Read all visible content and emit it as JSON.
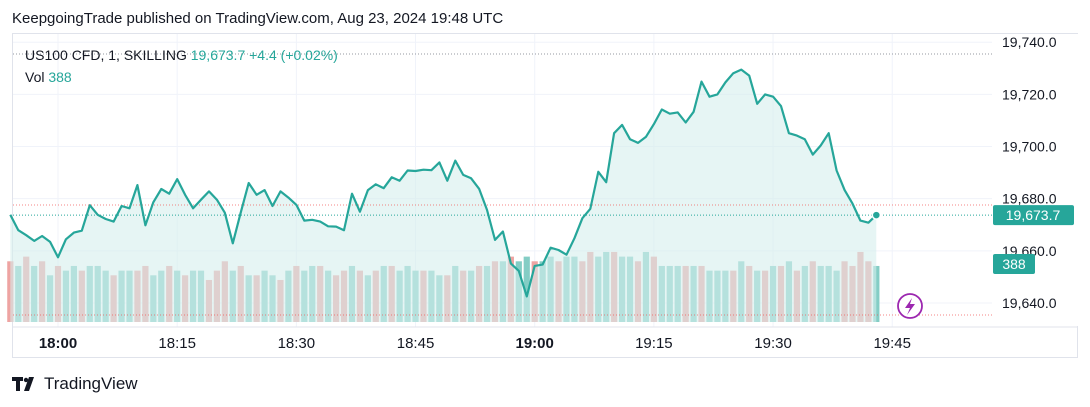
{
  "attribution": "KeepgoingTrade published on TradingView.com, Aug 23, 2024 19:48 UTC",
  "legend": {
    "symbol": "US100 CFD, 1, SKILLING",
    "price": "19,673.7",
    "change": "+4.4 (+0.02%)",
    "vol_label": "Vol",
    "vol_value": "388"
  },
  "brand": "TradingView",
  "colors": {
    "line": "#26a69a",
    "area": "#d6efec",
    "vol_up": "#84cdc5",
    "vol_down": "#eea4a2",
    "accent": "#9c27b0"
  },
  "chart_data": {
    "type": "line",
    "ylim": [
      19635,
      19742
    ],
    "yticks": [
      19640,
      19660,
      19680,
      19700,
      19720,
      19740
    ],
    "ytick_labels": [
      "19,640.0",
      "19,660.0",
      "19,680.0",
      "19,700.0",
      "19,720.0",
      "19,740.0"
    ],
    "x_ticks": [
      {
        "label": "18:00",
        "index": 0,
        "bold": true
      },
      {
        "label": "18:15",
        "index": 15,
        "bold": false
      },
      {
        "label": "18:30",
        "index": 30,
        "bold": false
      },
      {
        "label": "18:45",
        "index": 45,
        "bold": false
      },
      {
        "label": "19:00",
        "index": 60,
        "bold": true
      },
      {
        "label": "19:15",
        "index": 75,
        "bold": false
      },
      {
        "label": "19:30",
        "index": 90,
        "bold": false
      },
      {
        "label": "19:45",
        "index": 105,
        "bold": false
      }
    ],
    "start_index": -6,
    "series": [
      {
        "values": [
          19673.8,
          19667.9,
          19666.0,
          19663.8,
          19665.7,
          19663.4,
          19657.5,
          19664.4,
          19667.0,
          19667.7,
          19677.5,
          19673.8,
          19672.2,
          19671.2,
          19677.2,
          19676.3,
          19685.2,
          19669.8,
          19678.6,
          19683.7,
          19681.9,
          19687.5,
          19681.5,
          19676.3,
          19679.6,
          19682.8,
          19679.6,
          19674.6,
          19662.9,
          19674.6,
          19686.0,
          19681.5,
          19683.3,
          19677.2,
          19682.8,
          19680.4,
          19677.6,
          19671.6,
          19671.9,
          19671.2,
          19669.4,
          19669.3,
          19667.9,
          19681.9,
          19675.0,
          19683.3,
          19685.5,
          19684.0,
          19688.2,
          19686.9,
          19690.8,
          19690.6,
          19691.1,
          19690.9,
          19693.9,
          19686.9,
          19694.6,
          19689.1,
          19687.8,
          19683.8,
          19675.7,
          19664.2,
          19667.4,
          19655.1,
          19652.3,
          19642.5,
          19654.2,
          19654.7,
          19661.2,
          19660.3,
          19658.5,
          19664.8,
          19672.5,
          19676.1,
          19690.3,
          19686.3,
          19705.1,
          19708.3,
          19702.8,
          19701.4,
          19703.7,
          19708.6,
          19714.2,
          19712.6,
          19713.1,
          19709.2,
          19713.3,
          19724.9,
          19719.1,
          19720.0,
          19724.6,
          19728.1,
          19729.5,
          19727.2,
          19716.4,
          19720.0,
          19719.1,
          19715.5,
          19705.1,
          19704.2,
          19702.8,
          19696.9,
          19700.4,
          19705.1,
          19690.8,
          19683.3,
          19678.1,
          19671.6,
          19670.8,
          19673.7
        ]
      },
      {
        "name": "Vol",
        "values": [
          [
            13,
            0
          ],
          [
            12,
            1
          ],
          [
            14,
            0
          ],
          [
            12,
            1
          ],
          [
            13,
            0
          ],
          [
            10,
            1
          ],
          [
            12,
            0
          ],
          [
            11,
            1
          ],
          [
            12,
            1
          ],
          [
            11,
            0
          ],
          [
            12,
            1
          ],
          [
            12,
            1
          ],
          [
            11,
            1
          ],
          [
            10,
            0
          ],
          [
            11,
            1
          ],
          [
            11,
            1
          ],
          [
            11,
            0
          ],
          [
            12,
            0
          ],
          [
            10,
            1
          ],
          [
            11,
            1
          ],
          [
            12,
            0
          ],
          [
            11,
            1
          ],
          [
            10,
            0
          ],
          [
            11,
            1
          ],
          [
            11,
            1
          ],
          [
            9,
            0
          ],
          [
            11,
            0
          ],
          [
            13,
            0
          ],
          [
            11,
            1
          ],
          [
            12,
            0
          ],
          [
            10,
            1
          ],
          [
            10,
            0
          ],
          [
            11,
            1
          ],
          [
            10,
            1
          ],
          [
            9,
            0
          ],
          [
            11,
            1
          ],
          [
            12,
            0
          ],
          [
            11,
            1
          ],
          [
            12,
            1
          ],
          [
            12,
            0
          ],
          [
            11,
            1
          ],
          [
            10,
            0
          ],
          [
            11,
            0
          ],
          [
            12,
            1
          ],
          [
            11,
            0
          ],
          [
            10,
            1
          ],
          [
            11,
            0
          ],
          [
            12,
            1
          ],
          [
            12,
            0
          ],
          [
            11,
            1
          ],
          [
            12,
            1
          ],
          [
            11,
            1
          ],
          [
            11,
            0
          ],
          [
            11,
            1
          ],
          [
            10,
            1
          ],
          [
            10,
            0
          ],
          [
            12,
            1
          ],
          [
            11,
            0
          ],
          [
            11,
            1
          ],
          [
            12,
            0
          ],
          [
            12,
            1
          ],
          [
            13,
            0
          ],
          [
            13,
            1
          ],
          [
            14,
            0
          ],
          [
            13,
            1
          ],
          [
            14,
            1
          ],
          [
            13,
            0
          ],
          [
            13,
            1
          ],
          [
            14,
            1
          ],
          [
            13,
            0
          ],
          [
            14,
            1
          ],
          [
            14,
            1
          ],
          [
            13,
            0
          ],
          [
            15,
            0
          ],
          [
            14,
            1
          ],
          [
            15,
            1
          ],
          [
            15,
            0
          ],
          [
            14,
            1
          ],
          [
            14,
            1
          ],
          [
            13,
            0
          ],
          [
            15,
            1
          ],
          [
            14,
            0
          ],
          [
            12,
            1
          ],
          [
            12,
            1
          ],
          [
            12,
            1
          ],
          [
            12,
            0
          ],
          [
            12,
            1
          ],
          [
            12,
            0
          ],
          [
            11,
            1
          ],
          [
            11,
            1
          ],
          [
            11,
            1
          ],
          [
            11,
            0
          ],
          [
            13,
            1
          ],
          [
            12,
            0
          ],
          [
            11,
            1
          ],
          [
            11,
            0
          ],
          [
            12,
            1
          ],
          [
            12,
            0
          ],
          [
            13,
            1
          ],
          [
            11,
            0
          ],
          [
            12,
            1
          ],
          [
            13,
            0
          ],
          [
            12,
            1
          ],
          [
            12,
            1
          ],
          [
            11,
            1
          ],
          [
            13,
            0
          ],
          [
            12,
            0
          ],
          [
            15,
            0
          ],
          [
            13,
            0
          ],
          [
            12,
            1
          ]
        ]
      }
    ],
    "last_price_label": "19,673.7",
    "last_volume_label": "388",
    "volume_scale_max": 15
  }
}
